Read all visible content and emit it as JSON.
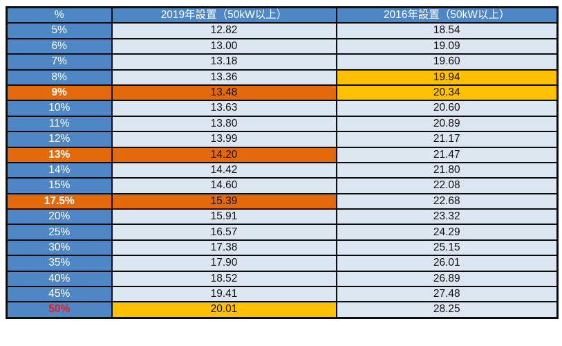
{
  "colors": {
    "header_blue": "#4e86c6",
    "cell_light_blue": "#dce6f1",
    "highlight_orange": "#e3690b",
    "highlight_gold": "#ffc000",
    "border": "#0d0d0d",
    "label_red": "#e0202a",
    "text_dark": "#111111",
    "text_white": "#ffffff"
  },
  "table": {
    "header": {
      "percent": "%",
      "col2019": "2019年設置（50kW以上）",
      "col2016": "2016年設置（50kW以上）"
    },
    "rows": [
      {
        "percent": "5%",
        "v2019": "12.82",
        "v2016": "18.54",
        "label_class": "",
        "c2019_class": "",
        "c2016_class": ""
      },
      {
        "percent": "6%",
        "v2019": "13.00",
        "v2016": "19.09",
        "label_class": "",
        "c2019_class": "",
        "c2016_class": ""
      },
      {
        "percent": "7%",
        "v2019": "13.18",
        "v2016": "19.60",
        "label_class": "",
        "c2019_class": "",
        "c2016_class": ""
      },
      {
        "percent": "8%",
        "v2019": "13.36",
        "v2016": "19.94",
        "label_class": "",
        "c2019_class": "",
        "c2016_class": "hl-gold"
      },
      {
        "percent": "9%",
        "v2019": "13.48",
        "v2016": "20.34",
        "label_class": "hl-orange bold",
        "c2019_class": "hl-orange",
        "c2016_class": "hl-gold"
      },
      {
        "percent": "10%",
        "v2019": "13.63",
        "v2016": "20.60",
        "label_class": "",
        "c2019_class": "",
        "c2016_class": ""
      },
      {
        "percent": "11%",
        "v2019": "13.80",
        "v2016": "20.89",
        "label_class": "",
        "c2019_class": "",
        "c2016_class": ""
      },
      {
        "percent": "12%",
        "v2019": "13.99",
        "v2016": "21.17",
        "label_class": "",
        "c2019_class": "",
        "c2016_class": ""
      },
      {
        "percent": "13%",
        "v2019": "14.20",
        "v2016": "21.47",
        "label_class": "hl-orange bold",
        "c2019_class": "hl-orange",
        "c2016_class": ""
      },
      {
        "percent": "14%",
        "v2019": "14.42",
        "v2016": "21.80",
        "label_class": "",
        "c2019_class": "",
        "c2016_class": ""
      },
      {
        "percent": "15%",
        "v2019": "14.60",
        "v2016": "22.08",
        "label_class": "",
        "c2019_class": "",
        "c2016_class": ""
      },
      {
        "percent": "17.5%",
        "v2019": "15.39",
        "v2016": "22.68",
        "label_class": "hl-orange bold",
        "c2019_class": "hl-orange",
        "c2016_class": ""
      },
      {
        "percent": "20%",
        "v2019": "15.91",
        "v2016": "23.32",
        "label_class": "",
        "c2019_class": "",
        "c2016_class": ""
      },
      {
        "percent": "25%",
        "v2019": "16.57",
        "v2016": "24.29",
        "label_class": "",
        "c2019_class": "",
        "c2016_class": ""
      },
      {
        "percent": "30%",
        "v2019": "17.38",
        "v2016": "25.15",
        "label_class": "",
        "c2019_class": "",
        "c2016_class": ""
      },
      {
        "percent": "35%",
        "v2019": "17.90",
        "v2016": "26.01",
        "label_class": "",
        "c2019_class": "",
        "c2016_class": ""
      },
      {
        "percent": "40%",
        "v2019": "18.52",
        "v2016": "26.89",
        "label_class": "",
        "c2019_class": "",
        "c2016_class": ""
      },
      {
        "percent": "45%",
        "v2019": "19.41",
        "v2016": "27.48",
        "label_class": "",
        "c2019_class": "",
        "c2016_class": ""
      },
      {
        "percent": "50%",
        "v2019": "20.01",
        "v2016": "28.25",
        "label_class": "red-label bold",
        "c2019_class": "hl-gold",
        "c2016_class": ""
      }
    ]
  },
  "chart_data": {
    "type": "table",
    "title": "",
    "columns": [
      "%",
      "2019年設置（50kW以上）",
      "2016年設置（50kW以上）"
    ],
    "rows": [
      [
        "5%",
        12.82,
        18.54
      ],
      [
        "6%",
        13.0,
        19.09
      ],
      [
        "7%",
        13.18,
        19.6
      ],
      [
        "8%",
        13.36,
        19.94
      ],
      [
        "9%",
        13.48,
        20.34
      ],
      [
        "10%",
        13.63,
        20.6
      ],
      [
        "11%",
        13.8,
        20.89
      ],
      [
        "12%",
        13.99,
        21.17
      ],
      [
        "13%",
        14.2,
        21.47
      ],
      [
        "14%",
        14.42,
        21.8
      ],
      [
        "15%",
        14.6,
        22.08
      ],
      [
        "17.5%",
        15.39,
        22.68
      ],
      [
        "20%",
        15.91,
        23.32
      ],
      [
        "25%",
        16.57,
        24.29
      ],
      [
        "30%",
        17.38,
        25.15
      ],
      [
        "35%",
        17.9,
        26.01
      ],
      [
        "40%",
        18.52,
        26.89
      ],
      [
        "45%",
        19.41,
        27.48
      ],
      [
        "50%",
        20.01,
        28.25
      ]
    ],
    "highlights": {
      "orange_percent_and_2019_rows": [
        "9%",
        "13%",
        "17.5%"
      ],
      "gold_2016_cells": [
        "8%",
        "9%"
      ],
      "gold_2019_cells": [
        "50%"
      ],
      "red_text_percent_labels": [
        "50%"
      ]
    }
  }
}
